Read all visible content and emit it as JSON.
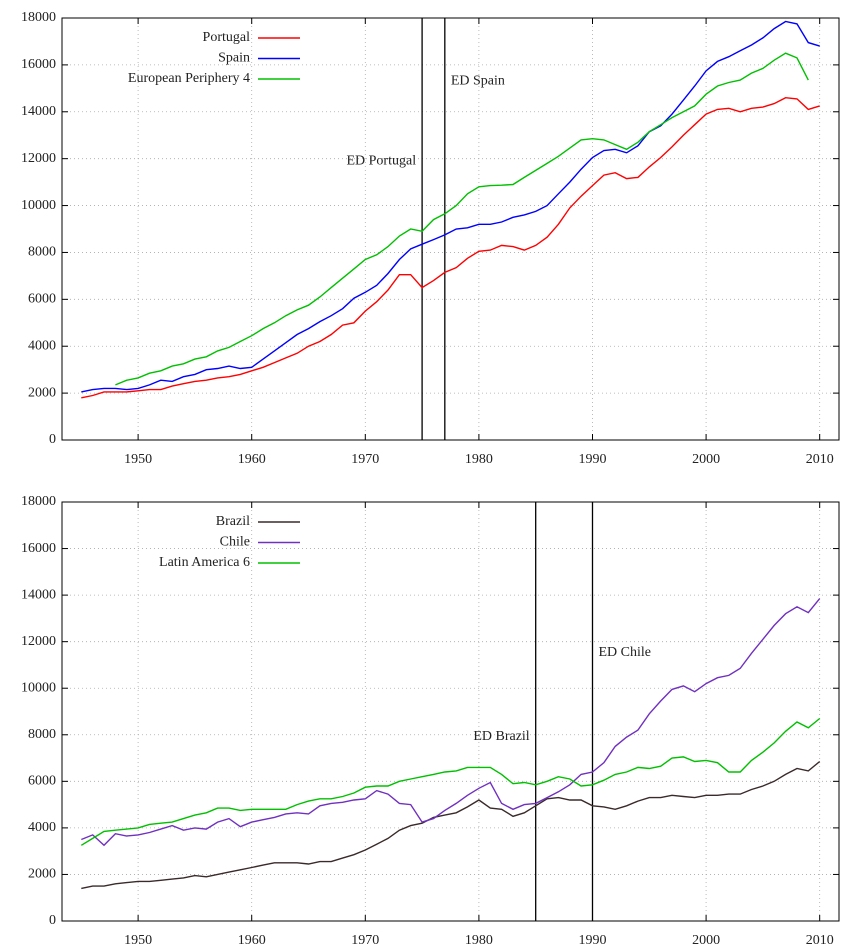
{
  "chart_data": [
    {
      "type": "line",
      "x": [
        1945,
        1946,
        1947,
        1948,
        1949,
        1950,
        1951,
        1952,
        1953,
        1954,
        1955,
        1956,
        1957,
        1958,
        1959,
        1960,
        1961,
        1962,
        1963,
        1964,
        1965,
        1966,
        1967,
        1968,
        1969,
        1970,
        1971,
        1972,
        1973,
        1974,
        1975,
        1976,
        1977,
        1978,
        1979,
        1980,
        1981,
        1982,
        1983,
        1984,
        1985,
        1986,
        1987,
        1988,
        1989,
        1990,
        1991,
        1992,
        1993,
        1994,
        1995,
        1996,
        1997,
        1998,
        1999,
        2000,
        2001,
        2002,
        2003,
        2004,
        2005,
        2006,
        2007,
        2008,
        2009,
        2010
      ],
      "series": [
        {
          "name": "Portugal",
          "color": "#ff0000",
          "values": [
            1800,
            1900,
            2050,
            2050,
            2050,
            2100,
            2150,
            2150,
            2300,
            2400,
            2500,
            2550,
            2650,
            2700,
            2800,
            2950,
            3100,
            3300,
            3500,
            3700,
            4000,
            4200,
            4500,
            4900,
            5000,
            5500,
            5900,
            6400,
            7050,
            7050,
            6500,
            6800,
            7150,
            7350,
            7750,
            8050,
            8100,
            8300,
            8250,
            8100,
            8300,
            8650,
            9200,
            9900,
            10400,
            10850,
            11300,
            11400,
            11150,
            11200,
            11650,
            12050,
            12500,
            13000,
            13450,
            13900,
            14100,
            14150,
            14000,
            14150,
            14200,
            14350,
            14600,
            14550,
            14100,
            14250
          ]
        },
        {
          "name": "Spain",
          "color": "#0000ff",
          "values": [
            2050,
            2150,
            2200,
            2200,
            2150,
            2200,
            2350,
            2550,
            2500,
            2700,
            2800,
            3000,
            3050,
            3150,
            3050,
            3100,
            3450,
            3800,
            4150,
            4500,
            4750,
            5050,
            5300,
            5600,
            6050,
            6300,
            6600,
            7100,
            7700,
            8150,
            8350,
            8550,
            8750,
            9000,
            9050,
            9200,
            9200,
            9300,
            9500,
            9600,
            9750,
            10000,
            10500,
            11000,
            11550,
            12050,
            12350,
            12400,
            12250,
            12550,
            13150,
            13400,
            13900,
            14500,
            15100,
            15750,
            16150,
            16350,
            16600,
            16850,
            17150,
            17550,
            17850,
            17750,
            16950,
            16800
          ]
        },
        {
          "name": "European Periphery 4",
          "color": "#00c000",
          "values": [
            null,
            null,
            null,
            2350,
            2550,
            2650,
            2850,
            2950,
            3150,
            3250,
            3450,
            3550,
            3800,
            3950,
            4200,
            4450,
            4750,
            5000,
            5300,
            5550,
            5750,
            6100,
            6500,
            6900,
            7300,
            7700,
            7900,
            8250,
            8700,
            9000,
            8900,
            9400,
            9650,
            10000,
            10500,
            10800,
            10850,
            10870,
            10900,
            11200,
            11500,
            11800,
            12100,
            12450,
            12800,
            12850,
            12800,
            12600,
            12400,
            12700,
            13150,
            13450,
            13750,
            14000,
            14250,
            14750,
            15100,
            15250,
            15350,
            15650,
            15850,
            16200,
            16500,
            16300,
            15350,
            null
          ]
        }
      ],
      "vlines": [
        {
          "x": 1975,
          "label": "ED Portugal",
          "side": "left"
        },
        {
          "x": 1977,
          "label": "ED Spain",
          "side": "right"
        }
      ],
      "xlim": [
        1943.3,
        2011.7
      ],
      "ylim": [
        0,
        18000
      ],
      "xticks": [
        1950,
        1960,
        1970,
        1980,
        1990,
        2000,
        2010
      ],
      "yticks": [
        0,
        2000,
        4000,
        6000,
        8000,
        10000,
        12000,
        14000,
        16000,
        18000
      ],
      "grid": true,
      "legend": "upper left"
    },
    {
      "type": "line",
      "x": [
        1945,
        1946,
        1947,
        1948,
        1949,
        1950,
        1951,
        1952,
        1953,
        1954,
        1955,
        1956,
        1957,
        1958,
        1959,
        1960,
        1961,
        1962,
        1963,
        1964,
        1965,
        1966,
        1967,
        1968,
        1969,
        1970,
        1971,
        1972,
        1973,
        1974,
        1975,
        1976,
        1977,
        1978,
        1979,
        1980,
        1981,
        1982,
        1983,
        1984,
        1985,
        1986,
        1987,
        1988,
        1989,
        1990,
        1991,
        1992,
        1993,
        1994,
        1995,
        1996,
        1997,
        1998,
        1999,
        2000,
        2001,
        2002,
        2003,
        2004,
        2005,
        2006,
        2007,
        2008,
        2009,
        2010
      ],
      "series": [
        {
          "name": "Brazil",
          "color": "#3a2a2a",
          "values": [
            1400,
            1500,
            1500,
            1600,
            1650,
            1700,
            1700,
            1750,
            1800,
            1850,
            1950,
            1900,
            2000,
            2100,
            2200,
            2300,
            2400,
            2500,
            2500,
            2500,
            2450,
            2550,
            2550,
            2700,
            2850,
            3050,
            3300,
            3550,
            3900,
            4100,
            4200,
            4450,
            4550,
            4650,
            4900,
            5200,
            4850,
            4800,
            4500,
            4650,
            4950,
            5250,
            5300,
            5200,
            5200,
            4950,
            4900,
            4800,
            4950,
            5150,
            5300,
            5300,
            5400,
            5350,
            5300,
            5400,
            5400,
            5450,
            5450,
            5650,
            5800,
            6000,
            6300,
            6550,
            6450,
            6850
          ]
        },
        {
          "name": "Chile",
          "color": "#7030c0",
          "values": [
            3500,
            3700,
            3250,
            3750,
            3650,
            3700,
            3800,
            3950,
            4100,
            3900,
            4000,
            3950,
            4250,
            4400,
            4050,
            4250,
            4350,
            4450,
            4600,
            4650,
            4600,
            4950,
            5050,
            5100,
            5200,
            5250,
            5600,
            5450,
            5050,
            5000,
            4250,
            4400,
            4750,
            5050,
            5400,
            5700,
            5950,
            5050,
            4800,
            5000,
            5050,
            5300,
            5550,
            5850,
            6300,
            6400,
            6800,
            7500,
            7900,
            8200,
            8900,
            9450,
            9950,
            10100,
            9850,
            10200,
            10450,
            10550,
            10850,
            11500,
            12100,
            12700,
            13200,
            13500,
            13250,
            13850
          ]
        },
        {
          "name": "Latin America 6",
          "color": "#00c000",
          "values": [
            3250,
            3550,
            3850,
            3900,
            3950,
            4000,
            4150,
            4200,
            4250,
            4400,
            4550,
            4650,
            4850,
            4850,
            4750,
            4800,
            4800,
            4800,
            4800,
            5000,
            5150,
            5250,
            5250,
            5350,
            5500,
            5750,
            5800,
            5800,
            6000,
            6100,
            6200,
            6300,
            6400,
            6450,
            6600,
            6600,
            6600,
            6300,
            5900,
            5950,
            5850,
            6000,
            6200,
            6100,
            5800,
            5850,
            6050,
            6300,
            6400,
            6600,
            6550,
            6650,
            7000,
            7050,
            6850,
            6900,
            6800,
            6400,
            6400,
            6900,
            7250,
            7650,
            8150,
            8550,
            8300,
            8700
          ]
        }
      ],
      "vlines": [
        {
          "x": 1985,
          "label": "ED Brazil",
          "side": "left"
        },
        {
          "x": 1990,
          "label": "ED Chile",
          "side": "right"
        }
      ],
      "xlim": [
        1943.3,
        2011.7
      ],
      "ylim": [
        0,
        18000
      ],
      "xticks": [
        1950,
        1960,
        1970,
        1980,
        1990,
        2000,
        2010
      ],
      "yticks": [
        0,
        2000,
        4000,
        6000,
        8000,
        10000,
        12000,
        14000,
        16000,
        18000
      ],
      "grid": true,
      "legend": "upper left"
    }
  ]
}
